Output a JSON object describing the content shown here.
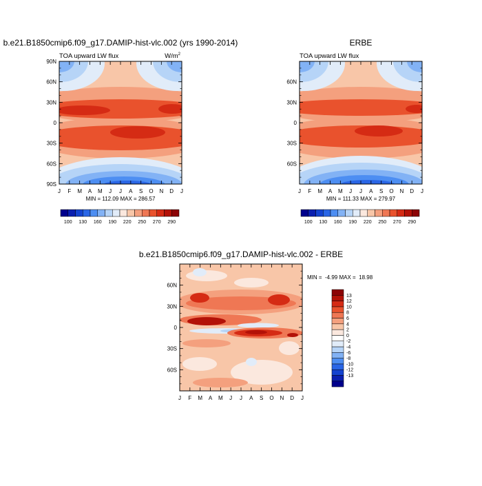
{
  "colors": {
    "field_scale": [
      "#00008c",
      "#0a1fb0",
      "#1443d0",
      "#2a66e6",
      "#4d8ef2",
      "#82b2f5",
      "#b6d4f7",
      "#e1ecf9",
      "#fbe8de",
      "#f8c6a8",
      "#f4a07e",
      "#ef7754",
      "#e9522d",
      "#d52b14",
      "#b31208",
      "#8c0406"
    ],
    "diff_scale": [
      "#00008c",
      "#0a1fb0",
      "#1443d0",
      "#2a66e6",
      "#4d8ef2",
      "#82b2f5",
      "#b6d4f7",
      "#e1ecf9",
      "#ffffff",
      "#fbe8de",
      "#f8c6a8",
      "#f4a07e",
      "#ef7754",
      "#e9522d",
      "#d52b14",
      "#b31208",
      "#8c0406"
    ]
  },
  "chart_data": [
    {
      "type": "heatmap",
      "id": "model",
      "title": "b.e21.B1850cmip6.f09_g17.DAMIP-hist-vlc.002 (yrs 1990-2014)",
      "variable_label": "TOA upward LW flux",
      "units_label": "W/m",
      "units_superscript": "2",
      "x_ticks": [
        "J",
        "F",
        "M",
        "A",
        "M",
        "J",
        "J",
        "A",
        "S",
        "O",
        "N",
        "D",
        "J"
      ],
      "y_ticks": [
        [
          "90N",
          90
        ],
        [
          "60N",
          60
        ],
        [
          "30N",
          30
        ],
        [
          "0",
          0
        ],
        [
          "30S",
          -30
        ],
        [
          "60S",
          -60
        ],
        [
          "90S",
          -90
        ]
      ],
      "ylim": [
        -90,
        90
      ],
      "min_max_text": "MIN = 112.09 MAX = 286.57",
      "min": 112.09,
      "max": 286.57,
      "colorbar_labels": [
        "100",
        "130",
        "160",
        "190",
        "220",
        "250",
        "270",
        "290"
      ],
      "colorbar_levels": [
        100,
        130,
        160,
        190,
        220,
        250,
        270,
        290
      ]
    },
    {
      "type": "heatmap",
      "id": "obs",
      "title": "ERBE",
      "variable_label": "TOA upward LW flux",
      "x_ticks": [
        "J",
        "F",
        "M",
        "A",
        "M",
        "J",
        "J",
        "A",
        "S",
        "O",
        "N",
        "D",
        "J"
      ],
      "y_ticks": [
        [
          "60N",
          60
        ],
        [
          "30N",
          30
        ],
        [
          "0",
          0
        ],
        [
          "30S",
          -30
        ],
        [
          "60S",
          -60
        ]
      ],
      "ylim": [
        -90,
        90
      ],
      "min_max_text": "MIN = 111.33 MAX = 279.97",
      "min": 111.33,
      "max": 279.97,
      "colorbar_labels": [
        "100",
        "130",
        "160",
        "190",
        "220",
        "250",
        "270",
        "290"
      ],
      "colorbar_levels": [
        100,
        130,
        160,
        190,
        220,
        250,
        270,
        290
      ]
    },
    {
      "type": "heatmap",
      "id": "difference",
      "title": "b.e21.B1850cmip6.f09_g17.DAMIP-hist-vlc.002 - ERBE",
      "x_ticks": [
        "J",
        "F",
        "M",
        "A",
        "M",
        "J",
        "J",
        "A",
        "S",
        "O",
        "N",
        "D",
        "J"
      ],
      "y_ticks": [
        [
          "60N",
          60
        ],
        [
          "30N",
          30
        ],
        [
          "0",
          0
        ],
        [
          "30S",
          -30
        ],
        [
          "60S",
          -60
        ]
      ],
      "ylim": [
        -90,
        90
      ],
      "min_max_text": "MIN =  -4.99 MAX =  18.98",
      "min": -4.99,
      "max": 18.98,
      "colorbar_labels": [
        "13",
        "12",
        "10",
        "8",
        "6",
        "4",
        "2",
        "0",
        "-2",
        "-4",
        "-6",
        "-8",
        "-10",
        "-12",
        "-13"
      ]
    }
  ]
}
